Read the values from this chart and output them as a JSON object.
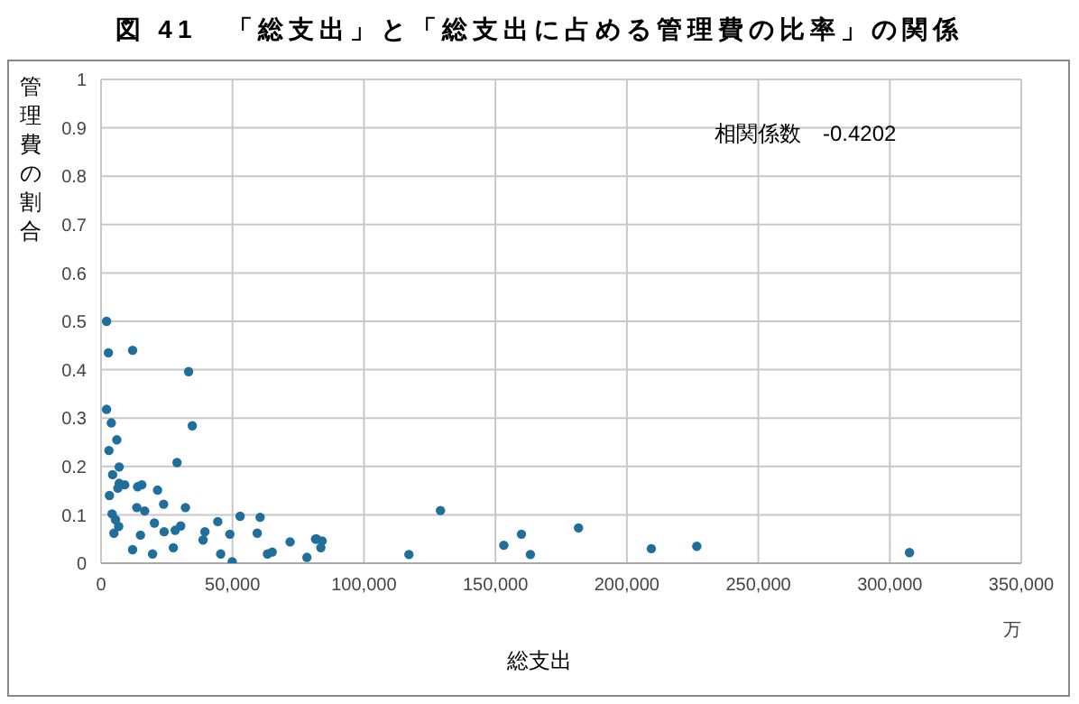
{
  "chart_data": {
    "type": "scatter",
    "title": "図 41　「総支出」と「総支出に占める管理費の比率」の関係",
    "xlabel": "総支出",
    "ylabel": "管理費の割合",
    "annotations": [
      "相関係数　-0.4202",
      "万"
    ],
    "x": [
      2100,
      2800,
      12000,
      33300,
      2100,
      3900,
      34700,
      6000,
      3000,
      28900,
      6900,
      4400,
      6900,
      9000,
      6400,
      13900,
      15500,
      21500,
      3200,
      23800,
      13600,
      16600,
      32100,
      4200,
      5500,
      6700,
      4900,
      20300,
      30300,
      28200,
      24000,
      15000,
      44400,
      39500,
      38800,
      52900,
      60500,
      49000,
      59400,
      71900,
      81600,
      12000,
      27500,
      19600,
      45500,
      49900,
      63300,
      65100,
      78300,
      82000,
      84100,
      83600,
      117100,
      129100,
      153200,
      159900,
      163300,
      181600,
      209300,
      226600,
      307500
    ],
    "series": [
      {
        "color": "#1f6e9c",
        "values": [
          0.5,
          0.435,
          0.44,
          0.396,
          0.318,
          0.29,
          0.284,
          0.255,
          0.233,
          0.208,
          0.199,
          0.183,
          0.165,
          0.162,
          0.155,
          0.158,
          0.162,
          0.151,
          0.14,
          0.122,
          0.115,
          0.108,
          0.115,
          0.102,
          0.09,
          0.076,
          0.062,
          0.083,
          0.077,
          0.068,
          0.065,
          0.058,
          0.086,
          0.065,
          0.048,
          0.097,
          0.095,
          0.06,
          0.062,
          0.044,
          0.05,
          0.028,
          0.032,
          0.019,
          0.019,
          0.003,
          0.019,
          0.023,
          0.012,
          0.05,
          0.046,
          0.032,
          0.018,
          0.109,
          0.037,
          0.06,
          0.018,
          0.073,
          0.03,
          0.035,
          0.022
        ]
      }
    ],
    "xlim": [
      0,
      350000
    ],
    "xticks": [
      0,
      {
        "value": 50000,
        "label": "50,000"
      },
      {
        "value": 100000,
        "label": "100,000"
      },
      {
        "value": 150000,
        "label": "150,000"
      },
      {
        "value": 200000,
        "label": "200,000"
      },
      {
        "value": 250000,
        "label": "250,000"
      },
      {
        "value": 300000,
        "label": "300,000"
      },
      {
        "value": 350000,
        "label": "350,000"
      }
    ],
    "ylim": [
      0,
      1
    ],
    "yticks": [
      0,
      0.1,
      0.2,
      0.3,
      0.4,
      0.5,
      0.6,
      0.7,
      0.8,
      0.9,
      1
    ],
    "grid": true,
    "marker": "circle"
  }
}
